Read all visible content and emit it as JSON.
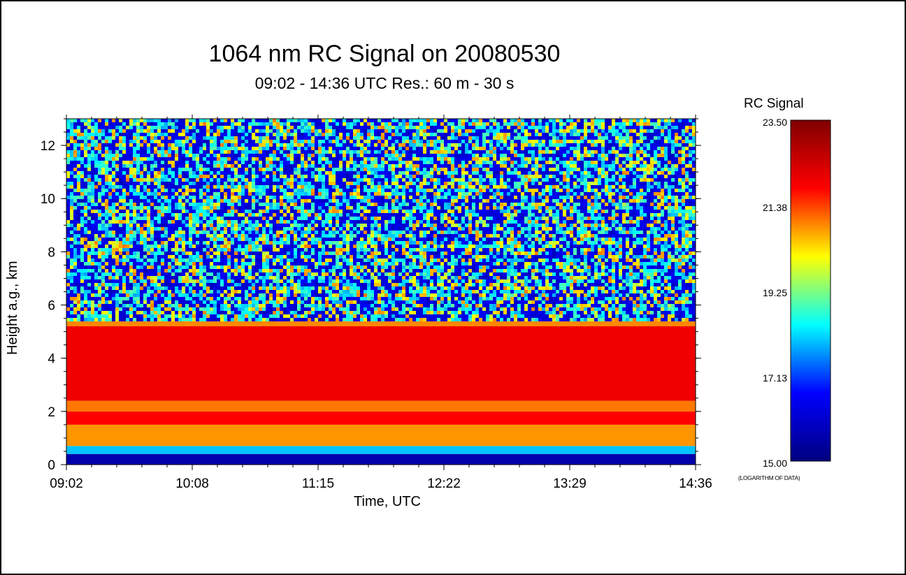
{
  "chart_data": {
    "type": "heatmap",
    "title": "1064 nm RC Signal on  20080530",
    "subtitle": "09:02 - 14:36 UTC Res.:  60 m -  30 s",
    "xlabel": "Time, UTC",
    "ylabel": "Height a.g., km",
    "x_ticks": [
      "09:02",
      "10:08",
      "11:15",
      "12:22",
      "13:29",
      "14:36"
    ],
    "y_ticks": [
      0,
      2,
      4,
      6,
      8,
      10,
      12
    ],
    "xlim": [
      "09:02",
      "14:36"
    ],
    "ylim": [
      0,
      13
    ],
    "colorbar": {
      "title": "RC Signal",
      "ticks": [
        "23.50",
        "21.38",
        "19.25",
        "17.13",
        "15.00"
      ],
      "range": [
        15.0,
        23.5
      ],
      "note": "(LOGARITHM OF DATA)",
      "colormap": [
        "#00007f",
        "#0000ff",
        "#00ffff",
        "#ffff00",
        "#ff0000",
        "#7f0000"
      ]
    },
    "layers": [
      {
        "height_km": [
          0.0,
          0.4
        ],
        "signal": 15.6
      },
      {
        "height_km": [
          0.4,
          0.7
        ],
        "signal": 18.0
      },
      {
        "height_km": [
          0.7,
          1.5
        ],
        "signal": 20.8
      },
      {
        "height_km": [
          1.5,
          2.0
        ],
        "signal": 21.8
      },
      {
        "height_km": [
          2.0,
          2.4
        ],
        "signal": 21.0
      },
      {
        "height_km": [
          2.4,
          5.2
        ],
        "signal": 22.0
      },
      {
        "height_km": [
          5.2,
          5.5
        ],
        "signal": 20.9
      },
      {
        "height_km": [
          5.5,
          13.0
        ],
        "signal": 17.8
      }
    ],
    "grid": false
  }
}
